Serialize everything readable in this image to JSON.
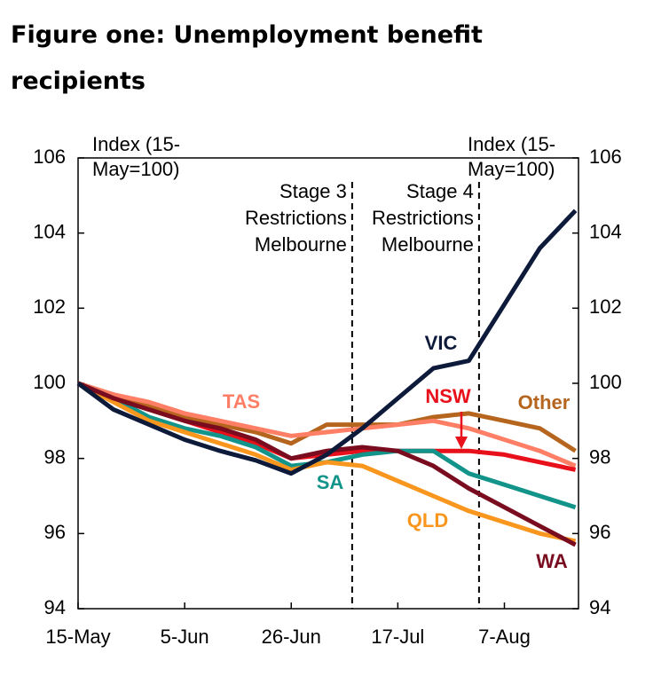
{
  "chart_data": {
    "type": "line",
    "title": "Figure one:  Unemployment benefit recipients",
    "y_label": [
      "Index (15-",
      "May=100)"
    ],
    "y2_label": [
      "Index (15-",
      "May=100)"
    ],
    "x": [
      0,
      7,
      14,
      21,
      28,
      35,
      42,
      49,
      56,
      63,
      70,
      77,
      84,
      91,
      98
    ],
    "xlim": [
      0,
      98.6
    ],
    "xticks": [
      {
        "value": 0,
        "label": "15-May"
      },
      {
        "value": 21,
        "label": "5-Jun"
      },
      {
        "value": 42,
        "label": "26-Jun"
      },
      {
        "value": 63,
        "label": "17-Jul"
      },
      {
        "value": 84,
        "label": "7-Aug"
      }
    ],
    "ylim": [
      94,
      106
    ],
    "yticks": [
      94,
      96,
      98,
      100,
      102,
      104,
      106
    ],
    "y2lim": [
      94,
      106
    ],
    "y2ticks": [
      94,
      96,
      98,
      100,
      102,
      104,
      106
    ],
    "grid": false,
    "annotations": [
      {
        "x": 54,
        "lines": [
          "Stage 3",
          "Restrictions",
          "Melbourne"
        ]
      },
      {
        "x": 79,
        "lines": [
          "Stage 4",
          "Restrictions",
          "Melbourne"
        ]
      }
    ],
    "series": [
      {
        "name": "Other",
        "color": "#b5651d",
        "values": [
          100,
          99.7,
          99.4,
          99.1,
          98.9,
          98.7,
          98.4,
          98.9,
          98.9,
          98.9,
          99.1,
          99.2,
          99.0,
          98.8,
          98.2
        ]
      },
      {
        "name": "TAS",
        "color": "#ff7f66",
        "values": [
          100,
          99.7,
          99.5,
          99.2,
          99.0,
          98.8,
          98.6,
          98.7,
          98.8,
          98.9,
          99.0,
          98.8,
          98.5,
          98.2,
          97.8
        ]
      },
      {
        "name": "NSW",
        "color": "#e8101a",
        "values": [
          100,
          99.6,
          99.3,
          99.0,
          98.7,
          98.4,
          98.0,
          98.1,
          98.2,
          98.2,
          98.2,
          98.2,
          98.1,
          97.9,
          97.7
        ]
      },
      {
        "name": "SA",
        "color": "#12948a",
        "values": [
          100,
          99.6,
          99.1,
          98.8,
          98.6,
          98.3,
          97.8,
          97.9,
          98.1,
          98.2,
          98.2,
          97.6,
          97.3,
          97.0,
          96.7
        ]
      },
      {
        "name": "QLD",
        "color": "#f8961e",
        "values": [
          100,
          99.5,
          99.0,
          98.7,
          98.4,
          98.1,
          97.7,
          97.9,
          97.8,
          97.4,
          97.0,
          96.6,
          96.3,
          96.0,
          95.8
        ]
      },
      {
        "name": "WA",
        "color": "#7a0c1f",
        "values": [
          100,
          99.6,
          99.3,
          99.0,
          98.8,
          98.5,
          98.0,
          98.2,
          98.3,
          98.2,
          97.8,
          97.2,
          96.7,
          96.2,
          95.7
        ]
      },
      {
        "name": "VIC",
        "color": "#0d1a3a",
        "values": [
          100,
          99.3,
          98.9,
          98.5,
          98.2,
          97.95,
          97.6,
          98.1,
          98.8,
          99.6,
          100.4,
          100.6,
          102.1,
          103.6,
          104.6
        ]
      }
    ]
  }
}
